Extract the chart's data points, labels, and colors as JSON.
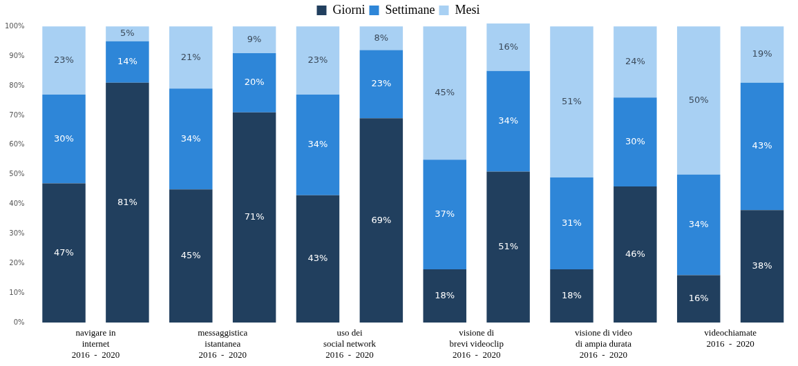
{
  "chart_data": {
    "type": "bar",
    "stacked": true,
    "categories": [
      "navigare in\ninternet\n2016  -  2020",
      null,
      "messaggistica\nistantanea\n2016  -  2020",
      null,
      "uso dei\nsocial network\n2016  -  2020",
      null,
      "visione di\nbrevi videoclip\n2016  -  2020",
      null,
      "visione di video\ndi ampia durata\n2016  -  2020",
      null,
      "videochiamate\n2016  -  2020",
      null
    ],
    "series": [
      {
        "name": "Giorni",
        "color": "#213f5e",
        "values": [
          47,
          81,
          45,
          71,
          43,
          69,
          18,
          51,
          18,
          46,
          16,
          38
        ],
        "value_labels": [
          "47%",
          "81%",
          "45%",
          "71%",
          "43%",
          "69%",
          "18%",
          "51%",
          "18%",
          "46%",
          "16%",
          "38%"
        ]
      },
      {
        "name": "Settimane",
        "color": "#2e86d8",
        "values": [
          30,
          14,
          34,
          20,
          34,
          23,
          37,
          34,
          31,
          30,
          34,
          43
        ],
        "value_labels": [
          "30%",
          "14%",
          "34%",
          "20%",
          "34%",
          "23%",
          "37%",
          "34%",
          "31%",
          "30%",
          "34%",
          "43%"
        ]
      },
      {
        "name": "Mesi",
        "color": "#a8d0f3",
        "values": [
          23,
          5,
          21,
          9,
          23,
          8,
          45,
          16,
          51,
          24,
          50,
          19
        ],
        "value_labels": [
          "23%",
          "5%",
          "21%",
          "9%",
          "23%",
          "8%",
          "45%",
          "16%",
          "51%",
          "24%",
          "50%",
          "19%"
        ]
      }
    ],
    "ylim": [
      0,
      101
    ],
    "yticks": [
      {
        "value": 0,
        "label": "0%"
      },
      {
        "value": 10,
        "label": "10%"
      },
      {
        "value": 20,
        "label": "20%"
      },
      {
        "value": 30,
        "label": "30%"
      },
      {
        "value": 40,
        "label": "40%"
      },
      {
        "value": 50,
        "label": "50%"
      },
      {
        "value": 60,
        "label": "60%"
      },
      {
        "value": 70,
        "label": "70%"
      },
      {
        "value": 80,
        "label": "80%"
      },
      {
        "value": 90,
        "label": "90%"
      },
      {
        "value": 100,
        "label": "100%"
      }
    ],
    "legend": "top"
  }
}
